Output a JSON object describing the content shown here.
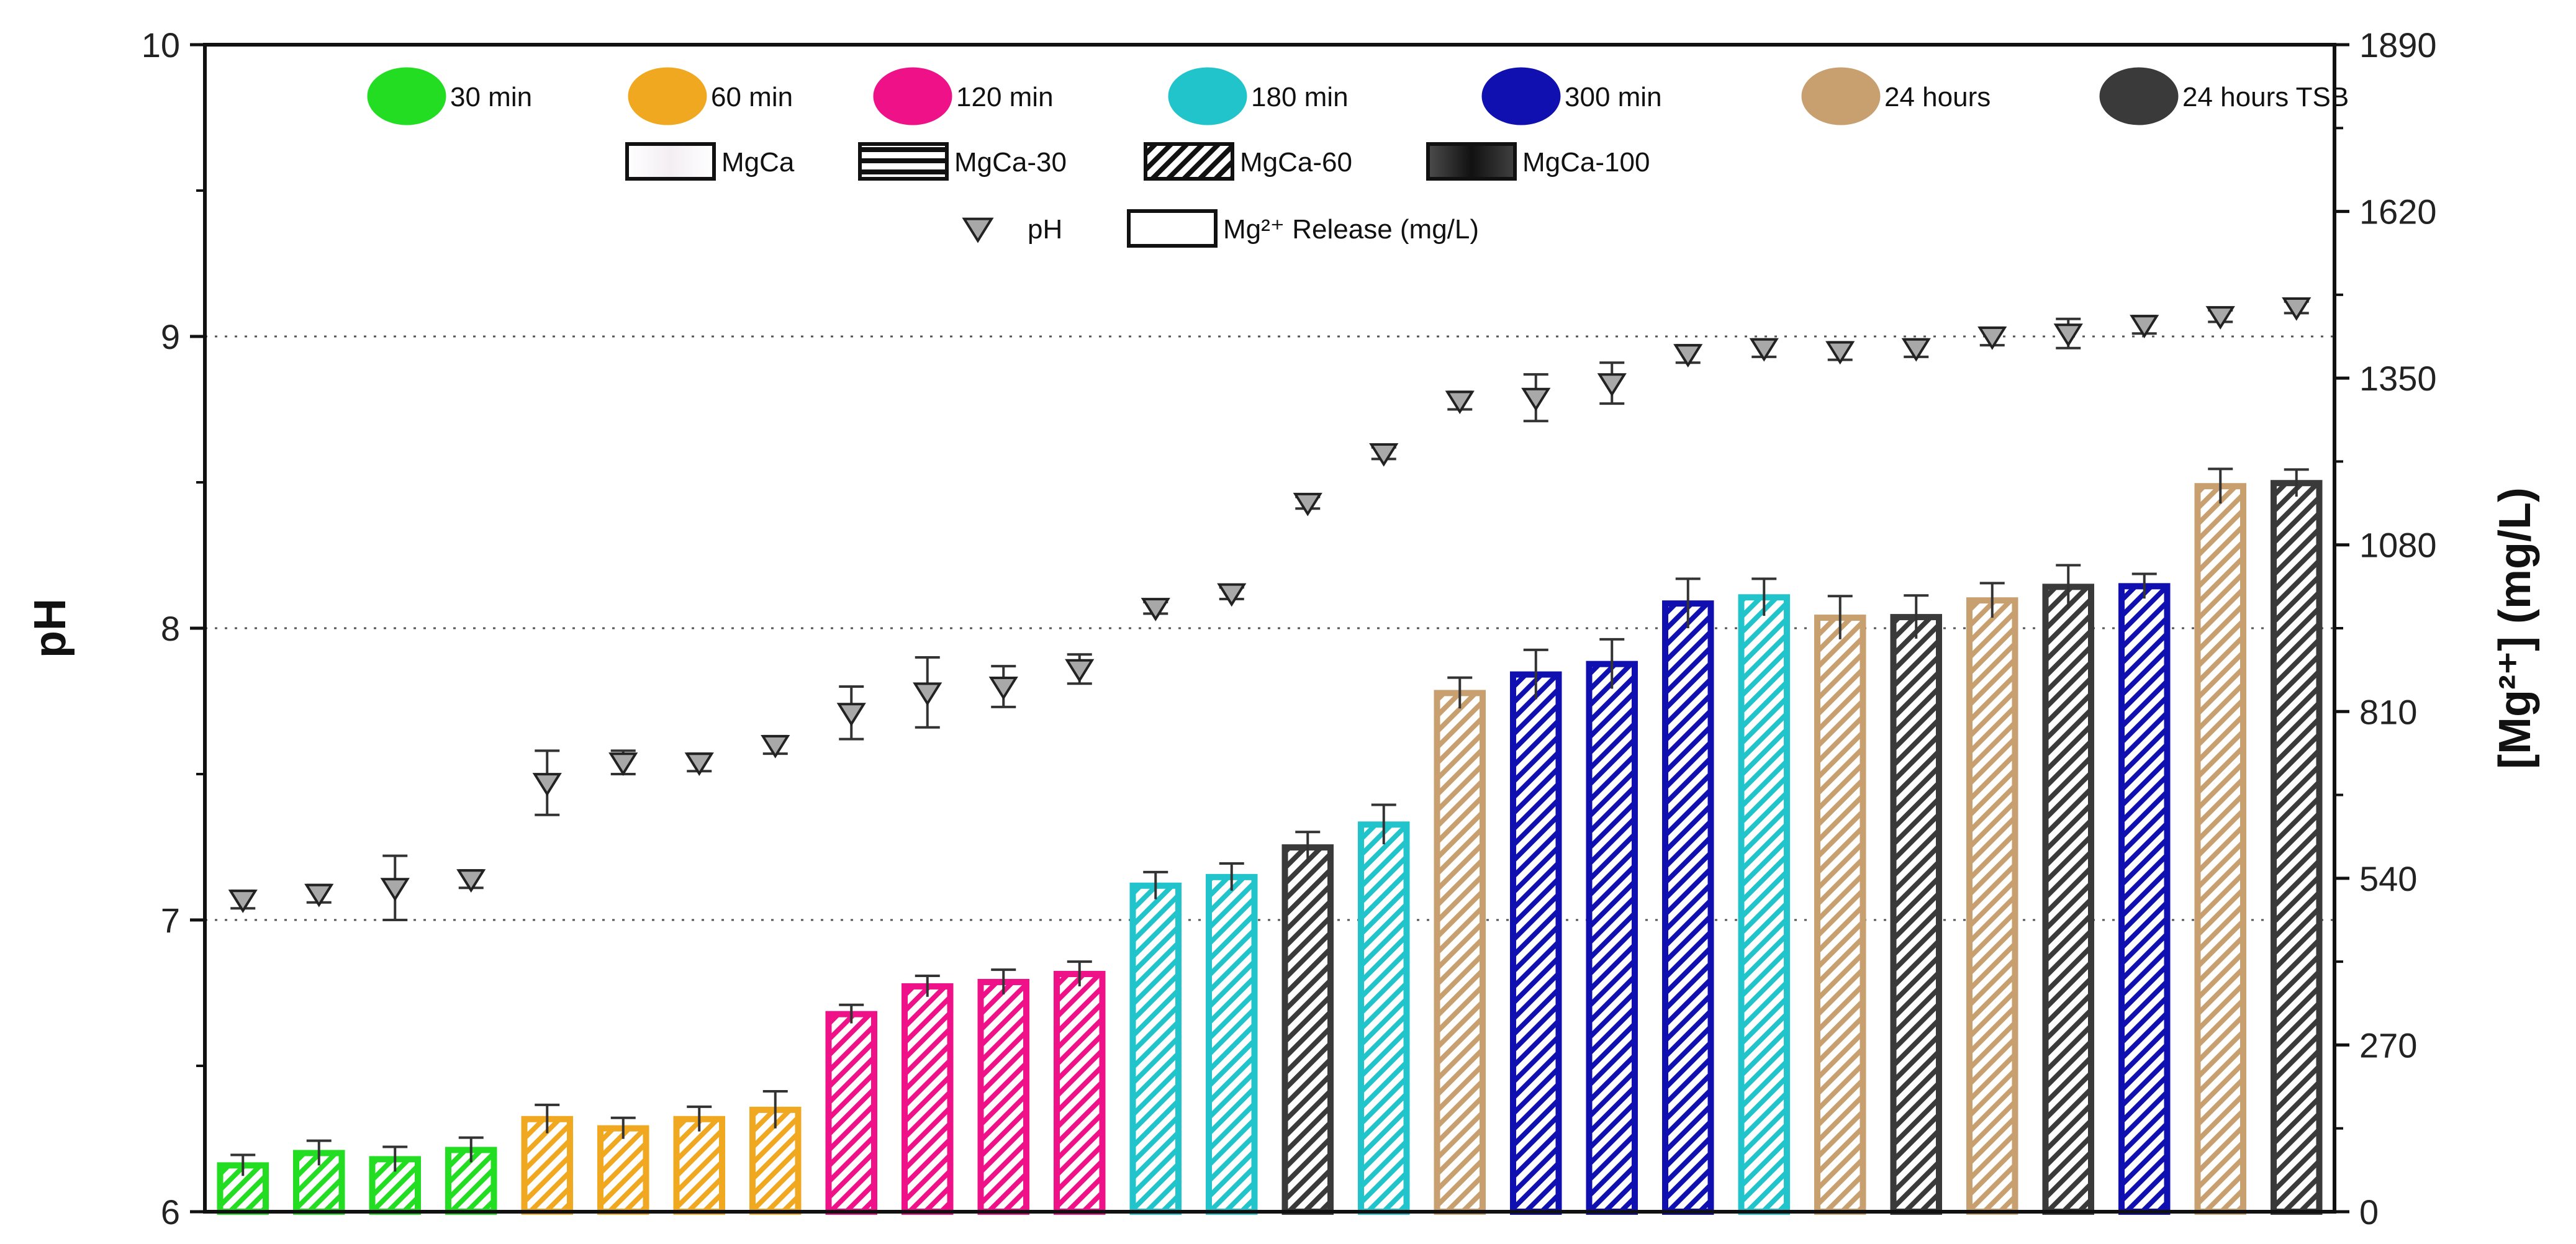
{
  "chart_data": {
    "type": "bar",
    "ylabel_left": "pH",
    "ylabel_right": "[Mg²⁺] (mg/L)",
    "left_axis": {
      "min": 6,
      "max": 10,
      "ticks": [
        "6",
        "7",
        "8",
        "9",
        "10"
      ]
    },
    "right_axis": {
      "min": 0,
      "max": 1890,
      "ticks": [
        "0",
        "270",
        "540",
        "810",
        "1080",
        "1350",
        "1620",
        "1890"
      ]
    },
    "grid_lines_at_ph": [
      7,
      8,
      9
    ],
    "legend": {
      "times": [
        {
          "label": "30 min",
          "color": "#22dd22"
        },
        {
          "label": "60 min",
          "color": "#f0a820"
        },
        {
          "label": "120 min",
          "color": "#ee1188"
        },
        {
          "label": "180 min",
          "color": "#22c4cc"
        },
        {
          "label": "300 min",
          "color": "#1010b0"
        },
        {
          "label": "24 hours",
          "color": "#c8a070"
        },
        {
          "label": "24 hours TSB",
          "color": "#3a3a3a"
        }
      ],
      "materials": [
        {
          "label": "MgCa",
          "pattern": "open"
        },
        {
          "label": "MgCa-30",
          "pattern": "horizontal"
        },
        {
          "label": "MgCa-60",
          "pattern": "diagonal"
        },
        {
          "label": "MgCa-100",
          "pattern": "solid"
        }
      ],
      "markers": [
        {
          "label": "pH",
          "symbol": "down-triangle"
        },
        {
          "label": "Mg²⁺ Release (mg/L)",
          "symbol": "open-box"
        }
      ]
    },
    "bars": [
      {
        "time": "30 min",
        "material": "MgCa",
        "mg": 75,
        "mg_err": 17,
        "ph": 7.07,
        "ph_err": 0.03
      },
      {
        "time": "30 min",
        "material": "MgCa-60",
        "mg": 95,
        "mg_err": 20,
        "ph": 7.09,
        "ph_err": 0.03
      },
      {
        "time": "30 min",
        "material": "MgCa-30",
        "mg": 85,
        "mg_err": 20,
        "ph": 7.11,
        "ph_err": 0.11
      },
      {
        "time": "30 min",
        "material": "MgCa-100",
        "mg": 100,
        "mg_err": 20,
        "ph": 7.14,
        "ph_err": 0.03
      },
      {
        "time": "60 min",
        "material": "MgCa",
        "mg": 150,
        "mg_err": 23,
        "ph": 7.47,
        "ph_err": 0.11
      },
      {
        "time": "60 min",
        "material": "MgCa-30",
        "mg": 135,
        "mg_err": 17,
        "ph": 7.54,
        "ph_err": 0.04
      },
      {
        "time": "60 min",
        "material": "MgCa-60",
        "mg": 150,
        "mg_err": 20,
        "ph": 7.54,
        "ph_err": 0.03
      },
      {
        "time": "60 min",
        "material": "MgCa-100",
        "mg": 165,
        "mg_err": 30,
        "ph": 7.6,
        "ph_err": 0.03
      },
      {
        "time": "120 min",
        "material": "MgCa-100",
        "mg": 320,
        "mg_err": 15,
        "ph": 7.71,
        "ph_err": 0.09
      },
      {
        "time": "120 min",
        "material": "MgCa",
        "mg": 365,
        "mg_err": 17,
        "ph": 7.78,
        "ph_err": 0.12
      },
      {
        "time": "120 min",
        "material": "MgCa-30",
        "mg": 372,
        "mg_err": 20,
        "ph": 7.8,
        "ph_err": 0.07
      },
      {
        "time": "120 min",
        "material": "MgCa-60",
        "mg": 385,
        "mg_err": 20,
        "ph": 7.86,
        "ph_err": 0.05
      },
      {
        "time": "180 min",
        "material": "MgCa-30",
        "mg": 528,
        "mg_err": 22,
        "ph": 8.07,
        "ph_err": 0.02
      },
      {
        "time": "180 min",
        "material": "MgCa-60",
        "mg": 542,
        "mg_err": 22,
        "ph": 8.12,
        "ph_err": 0.02
      },
      {
        "time": "24 hours TSB",
        "material": "MgCa-100",
        "mg": 590,
        "mg_err": 25,
        "ph": 8.43,
        "ph_err": 0.02
      },
      {
        "time": "180 min",
        "material": "MgCa-100",
        "mg": 627,
        "mg_err": 32,
        "ph": 8.6,
        "ph_err": 0.02
      },
      {
        "time": "24 hours",
        "material": "MgCa-100",
        "mg": 840,
        "mg_err": 25,
        "ph": 8.78,
        "ph_err": 0.03
      },
      {
        "time": "300 min",
        "material": "MgCa-30",
        "mg": 870,
        "mg_err": 40,
        "ph": 8.79,
        "ph_err": 0.08
      },
      {
        "time": "300 min",
        "material": "MgCa-60",
        "mg": 887,
        "mg_err": 40,
        "ph": 8.84,
        "ph_err": 0.07
      },
      {
        "time": "300 min",
        "material": "MgCa-100",
        "mg": 985,
        "mg_err": 40,
        "ph": 8.94,
        "ph_err": 0.03
      },
      {
        "time": "180 min",
        "material": "MgCa",
        "mg": 995,
        "mg_err": 30,
        "ph": 8.96,
        "ph_err": 0.03
      },
      {
        "time": "24 hours",
        "material": "MgCa-60",
        "mg": 962,
        "mg_err": 35,
        "ph": 8.95,
        "ph_err": 0.03
      },
      {
        "time": "24 hours TSB",
        "material": "MgCa-60",
        "mg": 963,
        "mg_err": 35,
        "ph": 8.96,
        "ph_err": 0.03
      },
      {
        "time": "24 hours",
        "material": "MgCa-30",
        "mg": 990,
        "mg_err": 28,
        "ph": 9.0,
        "ph_err": 0.03
      },
      {
        "time": "24 hours TSB",
        "material": "MgCa-30",
        "mg": 1012,
        "mg_err": 35,
        "ph": 9.01,
        "ph_err": 0.05
      },
      {
        "time": "300 min",
        "material": "MgCa",
        "mg": 1013,
        "mg_err": 20,
        "ph": 9.04,
        "ph_err": 0.03
      },
      {
        "time": "24 hours",
        "material": "MgCa",
        "mg": 1175,
        "mg_err": 28,
        "ph": 9.07,
        "ph_err": 0.02
      },
      {
        "time": "24 hours TSB",
        "material": "MgCa",
        "mg": 1180,
        "mg_err": 22,
        "ph": 9.1,
        "ph_err": 0.02
      }
    ]
  }
}
